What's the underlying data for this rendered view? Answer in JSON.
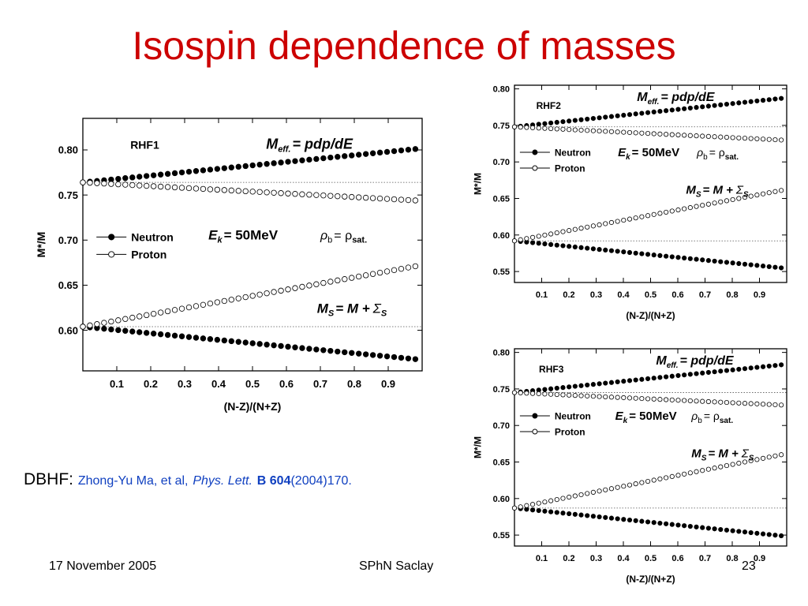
{
  "slide": {
    "title": "Isospin dependence of masses",
    "reference": {
      "prefix": "DBHF:",
      "authors": "Zhong-Yu Ma, et al,",
      "journal": "Phys. Lett.",
      "volume": "B 604",
      "pages": "(2004)170."
    },
    "footer": {
      "date": "17 November 2005",
      "organization": "SPhN Saclay",
      "page": "23"
    }
  },
  "chart_data": [
    {
      "id": "rhf1",
      "type": "scatter",
      "model_label": "RHF1",
      "xlabel": "(N-Z)/(N+Z)",
      "ylabel": "M*/M",
      "xlim": [
        0.0,
        1.0
      ],
      "ylim": [
        0.555,
        0.835
      ],
      "xticks": [
        "0.1",
        "0.2",
        "0.3",
        "0.4",
        "0.5",
        "0.6",
        "0.7",
        "0.8",
        "0.9"
      ],
      "yticks": [
        "0.60",
        "0.65",
        "0.70",
        "0.75",
        "0.80"
      ],
      "legend": [
        "Neutron",
        "Proton"
      ],
      "annotations": {
        "meff": "M",
        "meff_sub": "eff.",
        "meff_rest": "= pdp/dE",
        "ek": "E",
        "ek_sub": "k",
        "ek_rest": "= 50MeV",
        "rho": "ρ",
        "rho_sub_b": "b",
        "rho_eq": "= ρ",
        "rho_sub_sat": "sat.",
        "ms": "M",
        "ms_sub": "S",
        "ms_eq": "= M +",
        "sigma": "Σ",
        "sigma_sub": "S"
      },
      "reference_lines": [
        0.764,
        0.604
      ],
      "series": [
        {
          "name": "Neutron",
          "branch": "M_eff",
          "x": [
            0.0,
            0.98
          ],
          "y": [
            0.764,
            0.801
          ]
        },
        {
          "name": "Proton",
          "branch": "M_eff",
          "x": [
            0.0,
            0.98
          ],
          "y": [
            0.764,
            0.744
          ]
        },
        {
          "name": "Neutron",
          "branch": "M_S",
          "x": [
            0.0,
            0.98
          ],
          "y": [
            0.604,
            0.568
          ]
        },
        {
          "name": "Proton",
          "branch": "M_S",
          "x": [
            0.0,
            0.98
          ],
          "y": [
            0.604,
            0.671
          ]
        }
      ]
    },
    {
      "id": "rhf2",
      "type": "scatter",
      "model_label": "RHF2",
      "xlabel": "(N-Z)/(N+Z)",
      "ylabel": "M*/M",
      "xlim": [
        0.0,
        1.0
      ],
      "ylim": [
        0.535,
        0.805
      ],
      "xticks": [
        "0.1",
        "0.2",
        "0.3",
        "0.4",
        "0.5",
        "0.6",
        "0.7",
        "0.8",
        "0.9"
      ],
      "yticks": [
        "0.55",
        "0.60",
        "0.65",
        "0.70",
        "0.75",
        "0.80"
      ],
      "legend": [
        "Neutron",
        "Proton"
      ],
      "annotations": {
        "meff": "M",
        "meff_sub": "eff.",
        "meff_rest": "= pdp/dE",
        "ek": "E",
        "ek_sub": "k",
        "ek_rest": "= 50MeV",
        "rho": "ρ",
        "rho_sub_b": "b",
        "rho_eq": "= ρ",
        "rho_sub_sat": "sat.",
        "ms": "M",
        "ms_sub": "S",
        "ms_eq": "= M +",
        "sigma": "Σ",
        "sigma_sub": "S"
      },
      "reference_lines": [
        0.748,
        0.592
      ],
      "series": [
        {
          "name": "Neutron",
          "branch": "M_eff",
          "x": [
            0.0,
            0.98
          ],
          "y": [
            0.748,
            0.787
          ]
        },
        {
          "name": "Proton",
          "branch": "M_eff",
          "x": [
            0.0,
            0.98
          ],
          "y": [
            0.748,
            0.73
          ]
        },
        {
          "name": "Neutron",
          "branch": "M_S",
          "x": [
            0.0,
            0.98
          ],
          "y": [
            0.592,
            0.555
          ]
        },
        {
          "name": "Proton",
          "branch": "M_S",
          "x": [
            0.0,
            0.98
          ],
          "y": [
            0.592,
            0.661
          ]
        }
      ]
    },
    {
      "id": "rhf3",
      "type": "scatter",
      "model_label": "RHF3",
      "xlabel": "(N-Z)/(N+Z)",
      "ylabel": "M*/M",
      "xlim": [
        0.0,
        1.0
      ],
      "ylim": [
        0.535,
        0.805
      ],
      "xticks": [
        "0.1",
        "0.2",
        "0.3",
        "0.4",
        "0.5",
        "0.6",
        "0.7",
        "0.8",
        "0.9"
      ],
      "yticks": [
        "0.55",
        "0.60",
        "0.65",
        "0.70",
        "0.75",
        "0.80"
      ],
      "legend": [
        "Neutron",
        "Proton"
      ],
      "annotations": {
        "meff": "M",
        "meff_sub": "eff.",
        "meff_rest": "= pdp/dE",
        "ek": "E",
        "ek_sub": "k",
        "ek_rest": "= 50MeV",
        "rho": "ρ",
        "rho_sub_b": "b",
        "rho_eq": "= ρ",
        "rho_sub_sat": "sat.",
        "ms": "M",
        "ms_sub": "S",
        "ms_eq": "= M +",
        "sigma": "Σ",
        "sigma_sub": "S"
      },
      "reference_lines": [
        0.745,
        0.587
      ],
      "series": [
        {
          "name": "Neutron",
          "branch": "M_eff",
          "x": [
            0.0,
            0.98
          ],
          "y": [
            0.745,
            0.783
          ]
        },
        {
          "name": "Proton",
          "branch": "M_eff",
          "x": [
            0.0,
            0.98
          ],
          "y": [
            0.745,
            0.728
          ]
        },
        {
          "name": "Neutron",
          "branch": "M_S",
          "x": [
            0.0,
            0.98
          ],
          "y": [
            0.587,
            0.549
          ]
        },
        {
          "name": "Proton",
          "branch": "M_S",
          "x": [
            0.0,
            0.98
          ],
          "y": [
            0.587,
            0.66
          ]
        }
      ]
    }
  ]
}
